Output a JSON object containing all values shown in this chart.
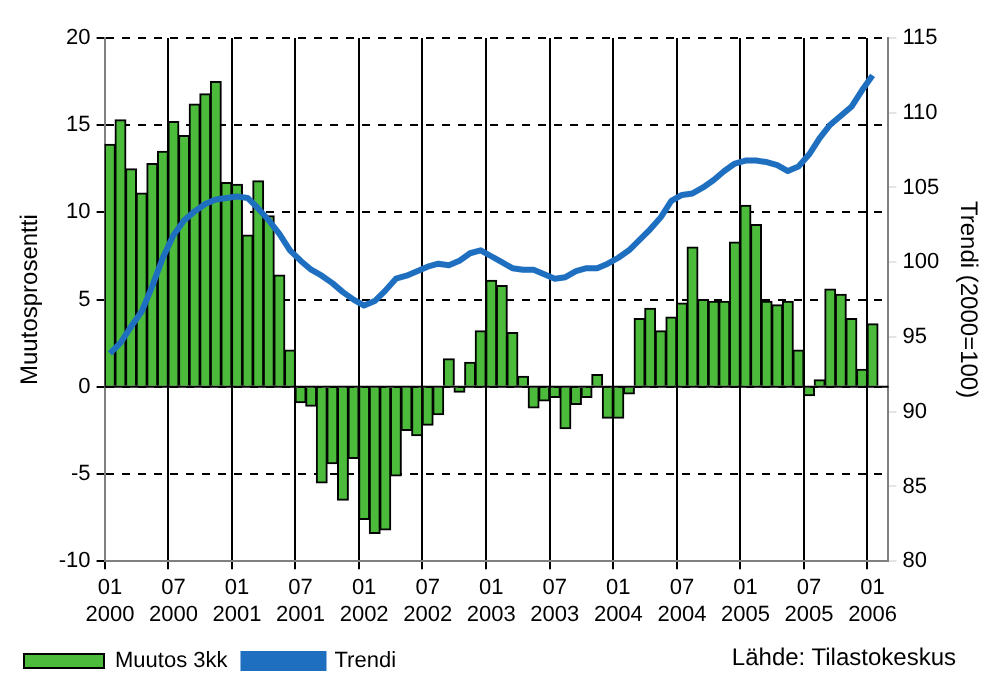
{
  "chart_data": {
    "type": "bar",
    "ylabel": "Muutosprosentti",
    "y2label": "Trendi (2000=100)",
    "categories": [
      "01 2000",
      null,
      null,
      null,
      null,
      null,
      "07 2000",
      null,
      null,
      null,
      null,
      null,
      "01 2001",
      null,
      null,
      null,
      null,
      null,
      "07 2001",
      null,
      null,
      null,
      null,
      null,
      "01 2002",
      null,
      null,
      null,
      null,
      null,
      "07 2002",
      null,
      null,
      null,
      null,
      null,
      "01 2003",
      null,
      null,
      null,
      null,
      null,
      "07 2003",
      null,
      null,
      null,
      null,
      null,
      "01 2004",
      null,
      null,
      null,
      null,
      null,
      "07 2004",
      null,
      null,
      null,
      null,
      null,
      "01 2005",
      null,
      null,
      null,
      null,
      null,
      "07 2005",
      null,
      null,
      null,
      null,
      null,
      "01 2006",
      null
    ],
    "series": [
      {
        "name": "Muutos 3kk",
        "color": "#4cbb3c",
        "values": [
          13.9,
          15.3,
          12.5,
          11.1,
          12.8,
          13.5,
          15.2,
          14.4,
          16.2,
          16.8,
          17.5,
          11.7,
          11.6,
          8.7,
          11.8,
          9.8,
          6.4,
          2.1,
          -0.9,
          -1.1,
          -5.5,
          -4.4,
          -6.5,
          -4.1,
          -7.6,
          -8.4,
          -8.2,
          -5.1,
          -2.5,
          -2.8,
          -2.2,
          -1.6,
          1.6,
          -0.3,
          1.4,
          3.2,
          6.1,
          5.8,
          3.1,
          0.6,
          -1.2,
          -0.8,
          -0.6,
          -2.4,
          -1.0,
          -0.6,
          0.7,
          -1.8,
          -1.8,
          -0.4,
          3.9,
          4.5,
          3.2,
          4.0,
          4.8,
          8.0,
          5.0,
          4.9,
          4.9,
          8.3,
          10.4,
          9.3,
          4.9,
          4.7,
          4.9,
          2.1,
          -0.5,
          0.4,
          5.6,
          5.3,
          3.9,
          1.0,
          3.6,
          null
        ]
      },
      {
        "name": "Trendi",
        "type": "line",
        "axis": "y2",
        "color": "#1f6fc0",
        "values": [
          93.9,
          94.6,
          95.7,
          96.7,
          98.4,
          100.3,
          101.8,
          102.8,
          103.4,
          103.9,
          104.2,
          104.3,
          104.4,
          104.3,
          103.6,
          102.8,
          101.9,
          100.8,
          100.1,
          99.5,
          99.1,
          98.6,
          98.0,
          97.5,
          97.1,
          97.4,
          98.1,
          98.9,
          99.1,
          99.4,
          99.7,
          99.9,
          99.8,
          100.1,
          100.6,
          100.8,
          100.4,
          100.0,
          99.6,
          99.5,
          99.5,
          99.2,
          98.9,
          99.0,
          99.4,
          99.6,
          99.6,
          99.9,
          100.3,
          100.8,
          101.5,
          102.2,
          103.0,
          104.1,
          104.5,
          104.6,
          105.0,
          105.5,
          106.1,
          106.6,
          106.8,
          106.8,
          106.7,
          106.5,
          106.1,
          106.4,
          107.2,
          108.3,
          109.2,
          109.8,
          110.4,
          111.5,
          112.5,
          null
        ]
      }
    ],
    "ylim": [
      -10,
      20
    ],
    "yticks": [
      -10,
      -5,
      0,
      5,
      10,
      15,
      20
    ],
    "y2lim": [
      80,
      115
    ],
    "y2ticks": [
      80,
      85,
      90,
      95,
      100,
      105,
      110,
      115
    ],
    "grid": true,
    "legend": "bottom left",
    "annotations": [
      "Lähde: Tilastokeskus"
    ]
  }
}
